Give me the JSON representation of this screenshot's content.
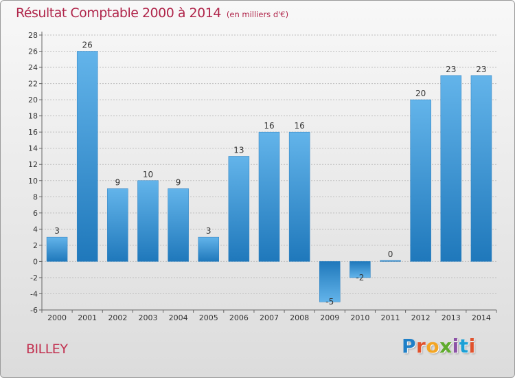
{
  "header": {
    "title": "Résultat Comptable 2000 à 2014",
    "subtitle": "(en milliers d'€)"
  },
  "footer": {
    "commune": "BILLEY",
    "logo_letters": [
      "P",
      "r",
      "o",
      "x",
      "i",
      "t",
      "i"
    ]
  },
  "colors": {
    "title": "#b0264b",
    "bar_light": "#63b4ea",
    "bar_dark": "#1f78bb",
    "grid": "#bfbfbf",
    "axis": "#666666"
  },
  "chart_data": {
    "type": "bar",
    "title": "Résultat Comptable 2000 à 2014",
    "subtitle": "(en milliers d'€)",
    "xlabel": "",
    "ylabel": "",
    "categories": [
      "2000",
      "2001",
      "2002",
      "2003",
      "2004",
      "2005",
      "2006",
      "2007",
      "2008",
      "2009",
      "2010",
      "2011",
      "2012",
      "2013",
      "2014"
    ],
    "values": [
      3,
      26,
      9,
      10,
      9,
      3,
      13,
      16,
      16,
      -5,
      -2,
      0,
      20,
      23,
      23
    ],
    "ylim": [
      -6,
      28
    ],
    "yticks": [
      -6,
      -4,
      -2,
      0,
      2,
      4,
      6,
      8,
      10,
      12,
      14,
      16,
      18,
      20,
      22,
      24,
      26,
      28
    ],
    "grid": true,
    "legend": "none"
  }
}
